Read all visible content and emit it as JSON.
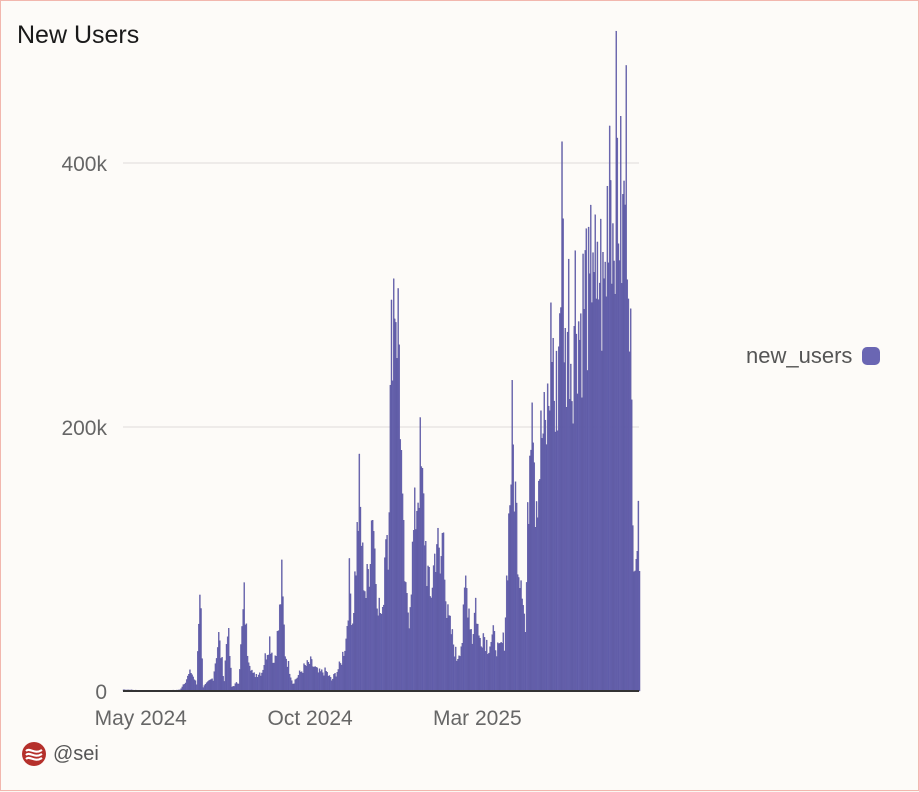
{
  "header": {
    "title": "New Users"
  },
  "footer": {
    "handle": "@sei",
    "logo_icon": "sei-logo-icon"
  },
  "colors": {
    "bar": "#6a66b3",
    "bar_stroke": "#4e4a94",
    "grid": "#e9e6e4",
    "axis": "#333333"
  },
  "chart_data": {
    "type": "bar",
    "title": "New Users",
    "xlabel": "",
    "ylabel": "",
    "x_range": [
      "2024-04-15",
      "2025-07-25"
    ],
    "ylim": [
      0,
      400000
    ],
    "y_ticks": [
      0,
      200000,
      400000
    ],
    "y_tick_labels": [
      "0",
      "200k",
      "400k"
    ],
    "x_ticks": [
      "2024-05-01",
      "2024-10-01",
      "2025-03-01"
    ],
    "x_tick_labels": [
      "May 2024",
      "Oct 2024",
      "Mar 2025"
    ],
    "grid": true,
    "legend_position": "right",
    "series": [
      {
        "name": "new_users",
        "color": "#6a66b3",
        "points": [
          [
            "2024-04-15",
            1000
          ],
          [
            "2024-05-01",
            500
          ],
          [
            "2024-05-20",
            300
          ],
          [
            "2024-06-05",
            800
          ],
          [
            "2024-06-15",
            15000
          ],
          [
            "2024-06-20",
            5000
          ],
          [
            "2024-06-23",
            85000
          ],
          [
            "2024-06-26",
            3000
          ],
          [
            "2024-07-05",
            10000
          ],
          [
            "2024-07-10",
            42000
          ],
          [
            "2024-07-15",
            8000
          ],
          [
            "2024-07-18",
            52000
          ],
          [
            "2024-07-22",
            3000
          ],
          [
            "2024-07-28",
            7000
          ],
          [
            "2024-08-02",
            72000
          ],
          [
            "2024-08-05",
            32000
          ],
          [
            "2024-08-10",
            12000
          ],
          [
            "2024-08-18",
            15000
          ],
          [
            "2024-08-25",
            40000
          ],
          [
            "2024-08-29",
            22000
          ],
          [
            "2024-09-02",
            48000
          ],
          [
            "2024-09-05",
            85000
          ],
          [
            "2024-09-08",
            30000
          ],
          [
            "2024-09-15",
            6000
          ],
          [
            "2024-09-25",
            18000
          ],
          [
            "2024-10-01",
            22000
          ],
          [
            "2024-10-08",
            14000
          ],
          [
            "2024-10-15",
            15000
          ],
          [
            "2024-10-20",
            8000
          ],
          [
            "2024-10-28",
            20000
          ],
          [
            "2024-11-02",
            40000
          ],
          [
            "2024-11-05",
            85000
          ],
          [
            "2024-11-08",
            55000
          ],
          [
            "2024-11-12",
            118000
          ],
          [
            "2024-11-14",
            155000
          ],
          [
            "2024-11-17",
            100000
          ],
          [
            "2024-11-20",
            75000
          ],
          [
            "2024-11-23",
            100000
          ],
          [
            "2024-11-26",
            150000
          ],
          [
            "2024-11-29",
            90000
          ],
          [
            "2024-12-02",
            65000
          ],
          [
            "2024-12-05",
            55000
          ],
          [
            "2024-12-08",
            135000
          ],
          [
            "2024-12-10",
            120000
          ],
          [
            "2024-12-12",
            215000
          ],
          [
            "2024-12-14",
            308000
          ],
          [
            "2024-12-16",
            322000
          ],
          [
            "2024-12-18",
            295000
          ],
          [
            "2024-12-20",
            270000
          ],
          [
            "2024-12-23",
            130000
          ],
          [
            "2024-12-26",
            70000
          ],
          [
            "2024-12-29",
            60000
          ],
          [
            "2025-01-02",
            120000
          ],
          [
            "2025-01-05",
            150000
          ],
          [
            "2025-01-08",
            178000
          ],
          [
            "2025-01-11",
            140000
          ],
          [
            "2025-01-14",
            98000
          ],
          [
            "2025-01-17",
            70000
          ],
          [
            "2025-01-20",
            95000
          ],
          [
            "2025-01-23",
            120000
          ],
          [
            "2025-01-26",
            90000
          ],
          [
            "2025-01-29",
            130000
          ],
          [
            "2025-02-01",
            60000
          ],
          [
            "2025-02-05",
            45000
          ],
          [
            "2025-02-10",
            25000
          ],
          [
            "2025-02-15",
            40000
          ],
          [
            "2025-02-18",
            85000
          ],
          [
            "2025-02-21",
            65000
          ],
          [
            "2025-02-24",
            40000
          ],
          [
            "2025-02-27",
            70000
          ],
          [
            "2025-03-02",
            40000
          ],
          [
            "2025-03-06",
            45000
          ],
          [
            "2025-03-10",
            35000
          ],
          [
            "2025-03-15",
            42000
          ],
          [
            "2025-03-20",
            30000
          ],
          [
            "2025-03-25",
            40000
          ],
          [
            "2025-03-29",
            130000
          ],
          [
            "2025-04-01",
            200000
          ],
          [
            "2025-04-04",
            150000
          ],
          [
            "2025-04-07",
            100000
          ],
          [
            "2025-04-10",
            90000
          ],
          [
            "2025-04-13",
            45000
          ],
          [
            "2025-04-16",
            160000
          ],
          [
            "2025-04-19",
            268000
          ],
          [
            "2025-04-22",
            155000
          ],
          [
            "2025-04-25",
            170000
          ],
          [
            "2025-04-28",
            200000
          ],
          [
            "2025-05-01",
            195000
          ],
          [
            "2025-05-04",
            225000
          ],
          [
            "2025-05-07",
            288000
          ],
          [
            "2025-05-10",
            205000
          ],
          [
            "2025-05-13",
            268000
          ],
          [
            "2025-05-16",
            378000
          ],
          [
            "2025-05-19",
            255000
          ],
          [
            "2025-05-22",
            300000
          ],
          [
            "2025-05-25",
            250000
          ],
          [
            "2025-05-28",
            310000
          ],
          [
            "2025-06-01",
            280000
          ],
          [
            "2025-06-04",
            300000
          ],
          [
            "2025-06-07",
            320000
          ],
          [
            "2025-06-10",
            285000
          ],
          [
            "2025-06-13",
            375000
          ],
          [
            "2025-06-16",
            280000
          ],
          [
            "2025-06-19",
            335000
          ],
          [
            "2025-06-22",
            300000
          ],
          [
            "2025-06-25",
            330000
          ],
          [
            "2025-06-28",
            450000
          ],
          [
            "2025-07-01",
            360000
          ],
          [
            "2025-07-04",
            420000
          ],
          [
            "2025-07-07",
            380000
          ],
          [
            "2025-07-10",
            350000
          ],
          [
            "2025-07-13",
            420000
          ],
          [
            "2025-07-16",
            340000
          ],
          [
            "2025-07-19",
            120000
          ]
        ]
      }
    ]
  }
}
